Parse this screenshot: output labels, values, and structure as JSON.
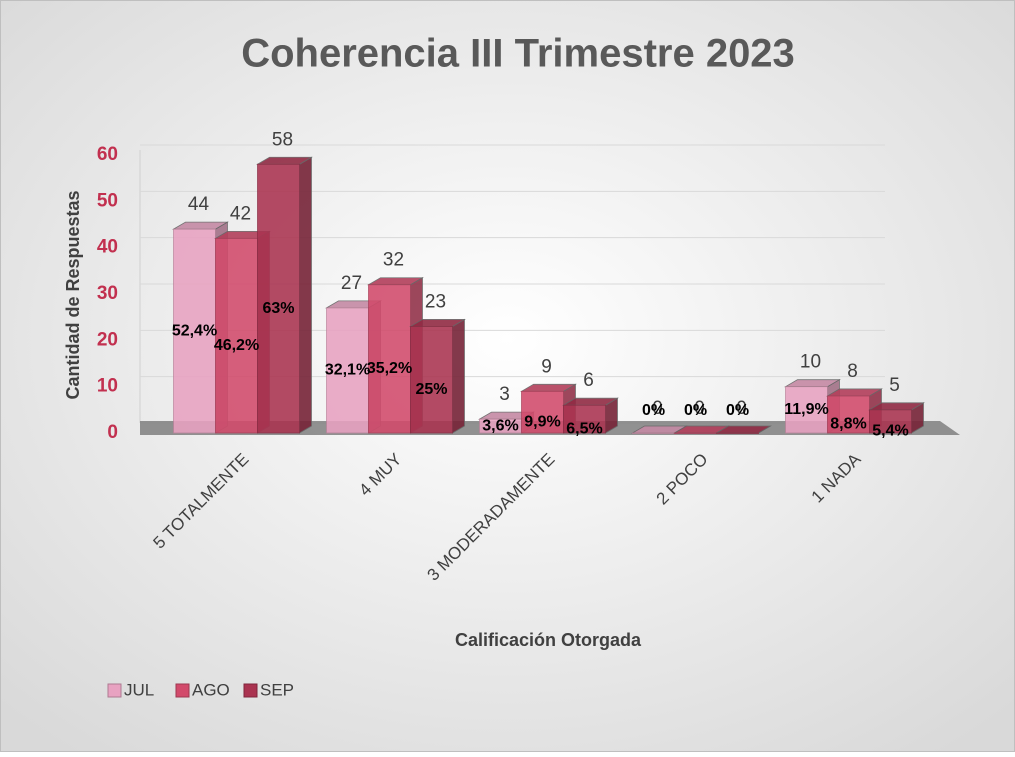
{
  "chart_data": {
    "type": "bar3d",
    "title": "Coherencia III Trimestre 2023",
    "x_label": "Calificación Otorgada",
    "y_label": "Cantidad de Respuestas",
    "categories": [
      "5 TOTALMENTE",
      "4 MUY",
      "3 MODERADAMENTE",
      "2 POCO",
      "1 NADA"
    ],
    "series": [
      {
        "name": "JUL",
        "color": "#e8a2c1",
        "values": [
          44,
          27,
          3,
          0,
          10
        ],
        "percent_labels": [
          "52,4%",
          "32,1%",
          "3,6%",
          "0%",
          "11,9%"
        ]
      },
      {
        "name": "AGO",
        "color": "#d24a6b",
        "values": [
          42,
          32,
          9,
          0,
          8
        ],
        "percent_labels": [
          "46,2%",
          "35,2%",
          "9,9%",
          "0%",
          "8,8%"
        ]
      },
      {
        "name": "SEP",
        "color": "#aa3350",
        "values": [
          58,
          23,
          6,
          0,
          5
        ],
        "percent_labels": [
          "63%",
          "25%",
          "6,5%",
          "0%",
          "5,4%"
        ]
      }
    ],
    "ylim": [
      0,
      60
    ],
    "yticks": [
      0,
      10,
      20,
      30,
      40,
      50,
      60
    ],
    "grid": true,
    "legend": "bottom-left"
  }
}
